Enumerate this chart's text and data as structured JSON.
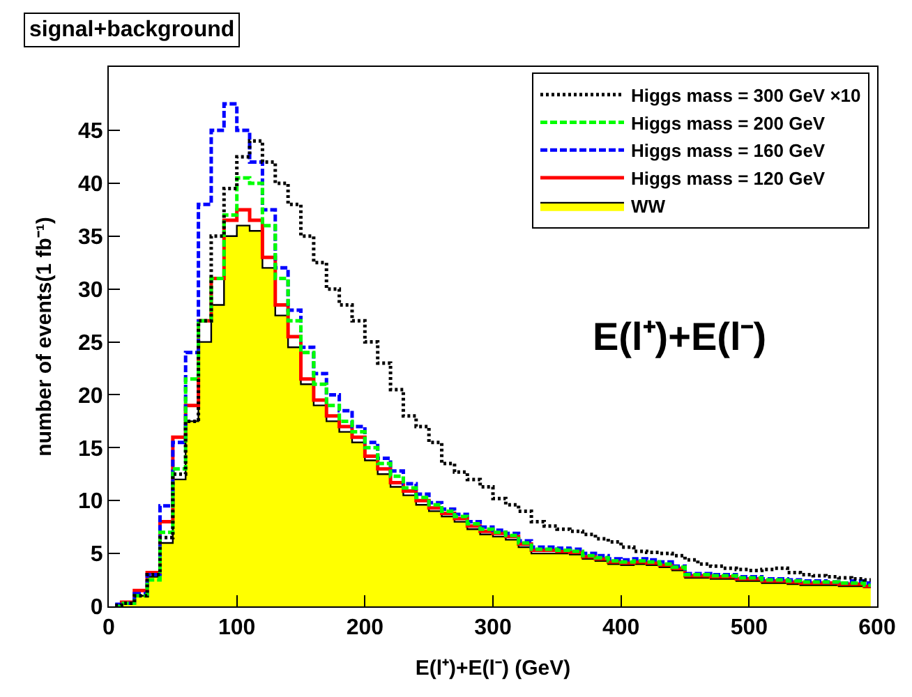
{
  "chart_data": {
    "type": "step",
    "title": "signal+background",
    "xlabel": "E(l⁺)+E(l⁻) (GeV)",
    "ylabel": "number of events(1 fb⁻¹)",
    "annotations": [
      "E(l⁺)+E(l⁻)"
    ],
    "x": [
      5,
      15,
      25,
      35,
      45,
      55,
      65,
      75,
      85,
      95,
      105,
      115,
      125,
      135,
      145,
      155,
      165,
      175,
      185,
      195,
      205,
      215,
      225,
      235,
      245,
      255,
      265,
      275,
      285,
      295,
      305,
      315,
      325,
      335,
      345,
      355,
      365,
      375,
      385,
      395,
      405,
      415,
      425,
      435,
      445,
      455,
      465,
      475,
      485,
      495,
      505,
      515,
      525,
      535,
      545,
      555,
      565,
      575,
      585,
      595
    ],
    "series": [
      {
        "name": "Higgs mass = 300 GeV ×10",
        "color": "#000000",
        "line_style": "dotted",
        "values": [
          0.1,
          0.3,
          1.0,
          3,
          6.5,
          12.5,
          17.5,
          27,
          35,
          39.5,
          42.5,
          44,
          42,
          40,
          38,
          35,
          32.5,
          30,
          28.5,
          27,
          25,
          23,
          20.5,
          18,
          17,
          15.5,
          13.5,
          12.7,
          12,
          11.3,
          10.2,
          9.6,
          9,
          8,
          7.6,
          7.3,
          7.1,
          6.8,
          6.4,
          6.1,
          5.6,
          5.2,
          5.1,
          5,
          4.8,
          4.4,
          4,
          3.8,
          3.6,
          3.5,
          3.4,
          3.5,
          3.6,
          3.2,
          3.0,
          2.9,
          2.8,
          2.7,
          2.6,
          2.5
        ]
      },
      {
        "name": "Higgs mass = 200 GeV",
        "color": "#00ff00",
        "line_style": "dashed",
        "values": [
          0.0,
          0.3,
          1.0,
          2.5,
          7,
          13,
          21.5,
          27,
          31,
          37,
          40.5,
          40,
          36,
          31,
          27,
          24,
          21,
          19,
          17.5,
          16.5,
          15,
          13.5,
          12.3,
          11.2,
          10.3,
          9.6,
          9,
          8.5,
          7.8,
          7.3,
          7,
          6.7,
          6,
          5.4,
          5.4,
          5.3,
          5.2,
          4.8,
          4.6,
          4.3,
          4.2,
          4.3,
          4.2,
          4.0,
          3.7,
          3.0,
          3.0,
          2.9,
          2.9,
          2.7,
          2.7,
          2.5,
          2.5,
          2.4,
          2.3,
          2.3,
          2.3,
          2.2,
          2.2,
          2.0
        ]
      },
      {
        "name": "Higgs mass = 160 GeV",
        "color": "#0000ff",
        "line_style": "dashed",
        "values": [
          0.2,
          0.3,
          1.2,
          3,
          9.5,
          15.5,
          24,
          38,
          45,
          47.5,
          45,
          42,
          37.5,
          32,
          28,
          24.5,
          22,
          20,
          18.5,
          17,
          15.5,
          14,
          12.8,
          11.6,
          10.6,
          9.8,
          9.2,
          8.7,
          8.0,
          7.5,
          7.2,
          6.9,
          6.2,
          5.6,
          5.6,
          5.5,
          5.4,
          5.0,
          4.8,
          4.5,
          4.4,
          4.5,
          4.4,
          4.2,
          3.8,
          3.1,
          3.1,
          3.0,
          3.0,
          2.8,
          2.8,
          2.6,
          2.6,
          2.5,
          2.4,
          2.4,
          2.3,
          2.2,
          2.4,
          2.2
        ]
      },
      {
        "name": "Higgs mass = 120 GeV",
        "color": "#ff0000",
        "line_style": "solid",
        "values": [
          0.1,
          0.4,
          1.5,
          3.2,
          8,
          16,
          19,
          27,
          31,
          36.5,
          37.5,
          36.5,
          33,
          28.5,
          25.5,
          21.5,
          19.5,
          18,
          17,
          16,
          14.2,
          13,
          11.7,
          10.9,
          10,
          9.3,
          8.8,
          8.3,
          7.6,
          7.1,
          6.9,
          6.6,
          5.9,
          5.3,
          5.3,
          5.2,
          5.1,
          4.7,
          4.5,
          4.2,
          4.1,
          4.2,
          4.1,
          3.9,
          3.6,
          2.9,
          2.9,
          2.8,
          2.8,
          2.6,
          2.6,
          2.4,
          2.4,
          2.3,
          2.2,
          2.2,
          2.2,
          2.1,
          2.1,
          1.9
        ]
      },
      {
        "name": "WW",
        "type": "area",
        "color": "#ffff00",
        "line_style": "solid",
        "values": [
          0.1,
          0.3,
          1.0,
          2.8,
          6,
          12,
          17.5,
          25,
          28.5,
          35,
          36,
          35.5,
          32,
          27.5,
          24.5,
          21,
          19,
          17.5,
          16.5,
          15.5,
          13.8,
          12.5,
          11.3,
          10.5,
          9.6,
          9,
          8.5,
          8,
          7.3,
          6.8,
          6.6,
          6.3,
          5.6,
          5,
          5,
          5,
          4.9,
          4.5,
          4.3,
          4,
          3.9,
          4,
          3.9,
          3.7,
          3.4,
          2.7,
          2.7,
          2.6,
          2.6,
          2.4,
          2.4,
          2.2,
          2.2,
          2.1,
          2.0,
          2.0,
          2.0,
          1.9,
          1.9,
          1.8
        ]
      }
    ],
    "xlim": [
      0,
      600
    ],
    "xticks": [
      0,
      100,
      200,
      300,
      400,
      500,
      600
    ],
    "ylim": [
      0,
      51
    ],
    "yticks": [
      0,
      5,
      10,
      15,
      20,
      25,
      30,
      35,
      40,
      45
    ],
    "legend": "top right",
    "marker": "none"
  }
}
